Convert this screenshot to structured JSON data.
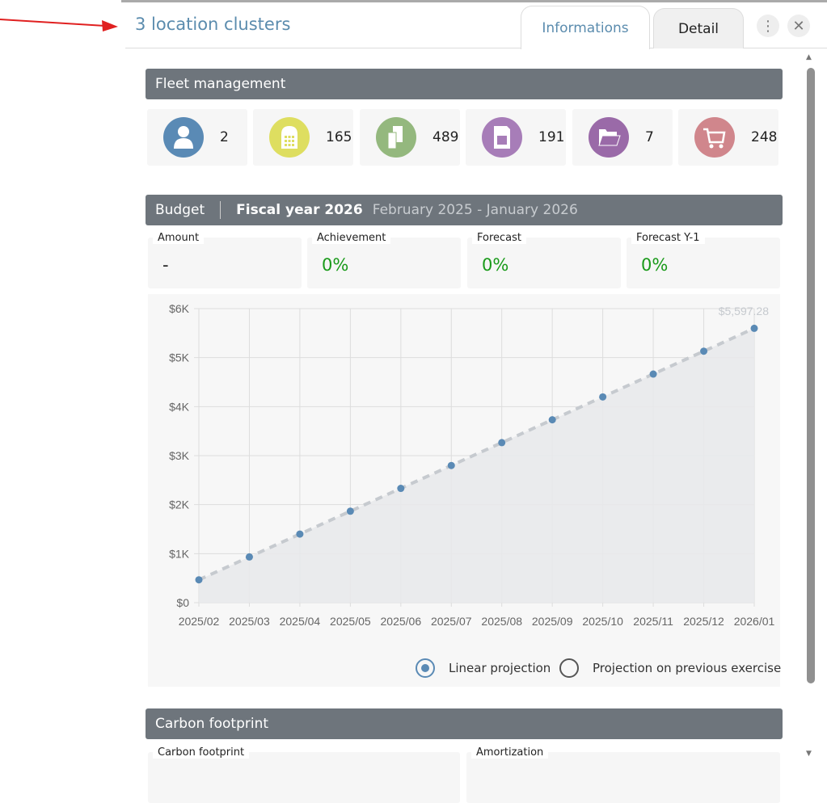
{
  "header": {
    "title": "3 location clusters",
    "tabs": [
      {
        "label": "Informations",
        "active": true
      },
      {
        "label": "Detail",
        "active": false
      }
    ],
    "menu_icon": "kebab-icon",
    "close_icon": "close-icon"
  },
  "fleet": {
    "title": "Fleet management",
    "tiles": [
      {
        "icon": "user-icon",
        "value": "2",
        "color": "#5a8ab5"
      },
      {
        "icon": "desk-phone-icon",
        "value": "165",
        "color": "#dede60"
      },
      {
        "icon": "devices-icon",
        "value": "489",
        "color": "#94b87e"
      },
      {
        "icon": "sim-card-icon",
        "value": "191",
        "color": "#a77db8"
      },
      {
        "icon": "folder-icon",
        "value": "7",
        "color": "#9a6aa8"
      },
      {
        "icon": "cart-icon",
        "value": "248",
        "color": "#d0868c"
      }
    ]
  },
  "budget": {
    "title": "Budget",
    "fiscal_year": "Fiscal year 2026",
    "period": "February 2025 - January 2026",
    "kpis": [
      {
        "label": "Amount",
        "value": "-"
      },
      {
        "label": "Achievement",
        "value": "0%"
      },
      {
        "label": "Forecast",
        "value": "0%"
      },
      {
        "label": "Forecast Y-1",
        "value": "0%"
      }
    ],
    "options": [
      {
        "label": "Linear projection",
        "selected": true
      },
      {
        "label": "Projection on previous exercise",
        "selected": false
      }
    ]
  },
  "chart_data": {
    "type": "area",
    "categories": [
      "2025/02",
      "2025/03",
      "2025/04",
      "2025/05",
      "2025/06",
      "2025/07",
      "2025/08",
      "2025/09",
      "2025/10",
      "2025/11",
      "2025/12",
      "2026/01"
    ],
    "values": [
      466.44,
      932.88,
      1399.32,
      1865.76,
      2332.2,
      2798.64,
      3265.08,
      3731.52,
      4197.96,
      4664.4,
      5130.84,
      5597.28
    ],
    "ylim": [
      0,
      6000
    ],
    "yticks": [
      "$0",
      "$1K",
      "$2K",
      "$3K",
      "$4K",
      "$5K",
      "$6K"
    ],
    "last_label": "$5,597.28",
    "grid": true,
    "line_style": "dashed",
    "color": "#5a8ab5"
  },
  "carbon": {
    "title": "Carbon footprint",
    "kpis": [
      {
        "label": "Carbon footprint"
      },
      {
        "label": "Amortization"
      }
    ]
  }
}
